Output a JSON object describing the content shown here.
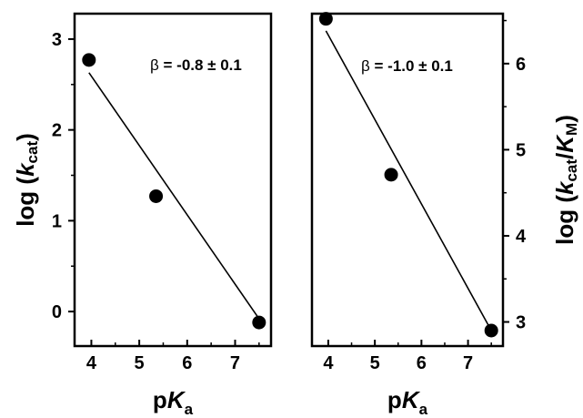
{
  "chart_data": [
    {
      "type": "scatter",
      "xlabel_main": "p",
      "xlabel_italic": "K",
      "xlabel_sub": "a",
      "ylabel_prefix": "log (",
      "ylabel_italic": "k",
      "ylabel_sub": "cat",
      "ylabel_suffix": ")",
      "yaxis_side": "left",
      "annotation_symbol": "β",
      "annotation_value": " = -0.8 ± 0.1",
      "xlim": [
        3.65,
        7.75
      ],
      "ylim": [
        -0.38,
        3.28
      ],
      "xticks": [
        4,
        5,
        6,
        7
      ],
      "xtick_labels": [
        "4",
        "5",
        "6",
        "7"
      ],
      "yticks": [
        0,
        1,
        2,
        3
      ],
      "ytick_labels": [
        "0",
        "1",
        "2",
        "3"
      ],
      "points": [
        {
          "x": 3.95,
          "y": 2.77
        },
        {
          "x": 5.35,
          "y": 1.27
        },
        {
          "x": 7.5,
          "y": -0.12
        }
      ],
      "fit_line": {
        "x": [
          3.95,
          7.5
        ],
        "y": [
          2.63,
          -0.08
        ]
      },
      "grid": false
    },
    {
      "type": "scatter",
      "xlabel_main": "p",
      "xlabel_italic": "K",
      "xlabel_sub": "a",
      "ylabel_prefix": "log (",
      "ylabel_italic": "k",
      "ylabel_sub": "cat",
      "ylabel_mid": "/",
      "ylabel_italic2": "K",
      "ylabel_sub2": "M",
      "ylabel_suffix": ")",
      "yaxis_side": "right",
      "annotation_symbol": "β",
      "annotation_value": " = -1.0 ± 0.1",
      "xlim": [
        3.65,
        7.75
      ],
      "ylim": [
        2.72,
        6.58
      ],
      "xticks": [
        4,
        5,
        6,
        7
      ],
      "xtick_labels": [
        "4",
        "5",
        "6",
        "7"
      ],
      "yticks": [
        3,
        4,
        5,
        6
      ],
      "ytick_labels": [
        "3",
        "4",
        "5",
        "6"
      ],
      "points": [
        {
          "x": 3.95,
          "y": 6.52
        },
        {
          "x": 5.35,
          "y": 4.71
        },
        {
          "x": 7.5,
          "y": 2.9
        }
      ],
      "fit_line": {
        "x": [
          3.95,
          7.5
        ],
        "y": [
          6.38,
          2.9
        ]
      },
      "grid": false
    }
  ]
}
